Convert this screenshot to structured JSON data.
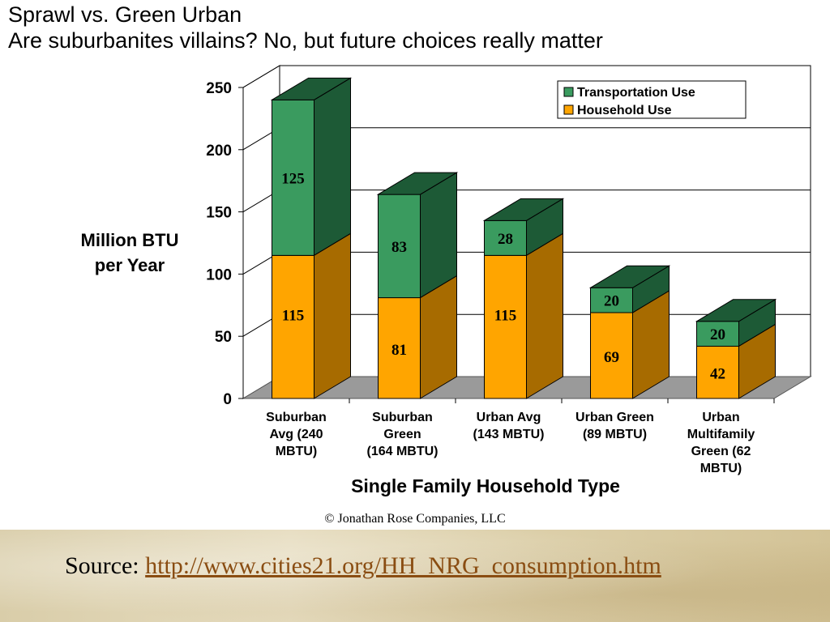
{
  "slide": {
    "title_line1": "Sprawl vs. Green Urban",
    "title_line2": "Are suburbanites villains?  No, but future choices really matter",
    "copyright": "© Jonathan Rose Companies, LLC",
    "source_label": "Source: ",
    "source_url": "http://www.cities21.org/HH_NRG_consumption.htm"
  },
  "colors": {
    "household": "#ffa500",
    "household_side": "#a76b00",
    "transport": "#3a9b5f",
    "transport_side": "#1d5a36",
    "floor": "#9a9a9a",
    "gridline": "#000000"
  },
  "chart_data": {
    "type": "bar",
    "stacked": true,
    "title": "",
    "ylabel": "Million BTU per Year",
    "ylabel_lines": [
      "Million BTU",
      "per Year"
    ],
    "xlabel": "Single Family Household Type",
    "ylim": [
      0,
      250
    ],
    "yticks": [
      0,
      50,
      100,
      150,
      200,
      250
    ],
    "categories": [
      [
        "Suburban",
        "Avg      (240",
        "MBTU)"
      ],
      [
        "Suburban",
        "Green",
        "(164 MBTU)"
      ],
      [
        "Urban Avg",
        "(143 MBTU)"
      ],
      [
        "Urban Green",
        "(89 MBTU)"
      ],
      [
        "Urban",
        "Multifamily",
        "Green  (62",
        "MBTU)"
      ]
    ],
    "series": [
      {
        "name": "Household Use",
        "values": [
          115,
          81,
          115,
          69,
          42
        ]
      },
      {
        "name": "Transportation Use",
        "values": [
          125,
          83,
          28,
          20,
          20
        ]
      }
    ],
    "legend": [
      "Transportation Use",
      "Household Use"
    ],
    "legend_position": "top-right"
  }
}
